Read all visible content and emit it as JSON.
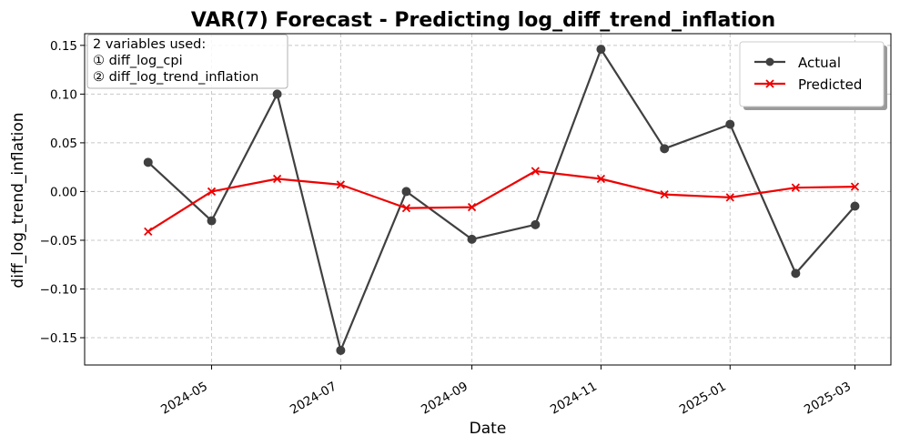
{
  "chart_data": {
    "type": "line",
    "title": "VAR(7) Forecast - Predicting log_diff_trend_inflation",
    "xlabel": "Date",
    "ylabel": "diff_log_trend_inflation",
    "x": [
      "2024-04-01",
      "2024-05-01",
      "2024-06-01",
      "2024-07-01",
      "2024-08-01",
      "2024-09-01",
      "2024-10-01",
      "2024-11-01",
      "2024-12-01",
      "2025-01-01",
      "2025-02-01",
      "2025-03-01"
    ],
    "xticks": [
      "2024-05",
      "2024-07",
      "2024-09",
      "2024-11",
      "2025-01",
      "2025-03"
    ],
    "xlim": [
      "2024-03-02",
      "2025-03-18"
    ],
    "yticks": [
      -0.15,
      -0.1,
      -0.05,
      0.0,
      0.05,
      0.1,
      0.15
    ],
    "ytick_labels": [
      "−0.15",
      "−0.10",
      "−0.05",
      "0.00",
      "0.05",
      "0.10",
      "0.15"
    ],
    "ylim": [
      -0.178,
      0.162
    ],
    "grid": true,
    "legend_position": "top-right",
    "series": [
      {
        "name": "Actual",
        "color": "#404040",
        "marker": "circle",
        "values": [
          0.03,
          -0.03,
          0.1,
          -0.163,
          0.0,
          -0.049,
          -0.034,
          0.146,
          0.044,
          0.069,
          -0.084,
          -0.015
        ]
      },
      {
        "name": "Predicted",
        "color": "#ee0000",
        "marker": "x",
        "values": [
          -0.041,
          0.0,
          0.013,
          0.007,
          -0.017,
          -0.016,
          0.021,
          0.013,
          -0.003,
          -0.006,
          0.004,
          0.005
        ]
      }
    ],
    "annotation": {
      "lines": [
        "2 variables used:",
        "① diff_log_cpi",
        "② diff_log_trend_inflation"
      ],
      "position": "top-left"
    }
  }
}
